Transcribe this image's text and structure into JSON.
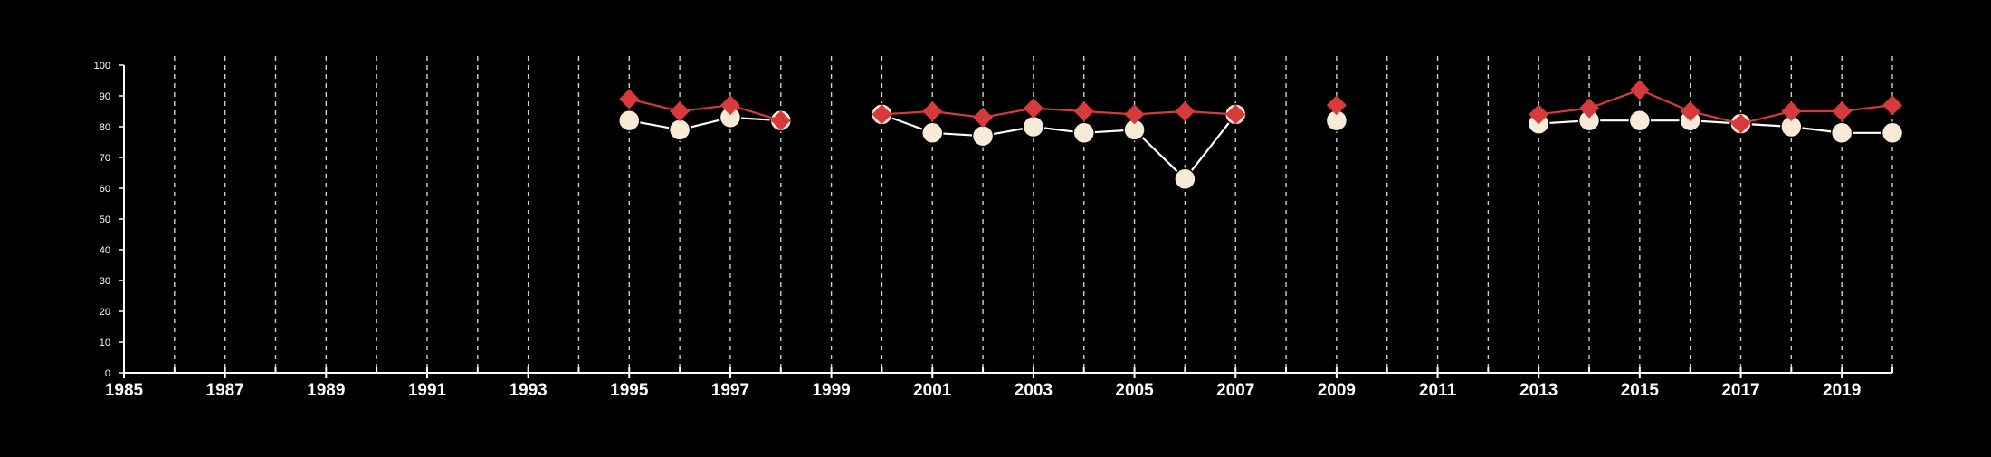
{
  "chart_data": {
    "type": "line",
    "title": "",
    "xlabel": "",
    "ylabel": "",
    "xlim": [
      1985,
      2020
    ],
    "ylim": [
      0,
      100
    ],
    "x_ticks": [
      1985,
      1987,
      1989,
      1991,
      1993,
      1995,
      1997,
      1999,
      2001,
      2003,
      2005,
      2007,
      2009,
      2011,
      2013,
      2015,
      2017,
      2019
    ],
    "x_minor_ticks": [
      1986,
      1987,
      1988,
      1989,
      1990,
      1991,
      1992,
      1993,
      1994,
      1995,
      1996,
      1997,
      1998,
      1999,
      2000,
      2001,
      2002,
      2003,
      2004,
      2005,
      2006,
      2007,
      2008,
      2009,
      2010,
      2011,
      2012,
      2013,
      2014,
      2015,
      2016,
      2017,
      2018,
      2019,
      2020
    ],
    "y_ticks": [
      0,
      10,
      20,
      30,
      40,
      50,
      60,
      70,
      80,
      90,
      100
    ],
    "grid": "vertical dashed lines at each year",
    "legend": "none",
    "background": "#000000",
    "axis_color": "#ffffff",
    "grid_color": "#cfcfcf",
    "series": [
      {
        "marker": "circle",
        "color": "#f7ead7",
        "line_color": "#ffffff",
        "points": [
          [
            1995,
            82
          ],
          [
            1996,
            79
          ],
          [
            1997,
            83
          ],
          [
            1998,
            82
          ],
          [
            1999,
            null
          ],
          [
            2000,
            84
          ],
          [
            2001,
            78
          ],
          [
            2002,
            77
          ],
          [
            2003,
            80
          ],
          [
            2004,
            78
          ],
          [
            2005,
            79
          ],
          [
            2006,
            63
          ],
          [
            2007,
            84
          ],
          [
            2008,
            null
          ],
          [
            2009,
            82
          ],
          [
            2010,
            null
          ],
          [
            2013,
            81
          ],
          [
            2014,
            82
          ],
          [
            2015,
            82
          ],
          [
            2016,
            82
          ],
          [
            2017,
            81
          ],
          [
            2018,
            80
          ],
          [
            2019,
            78
          ],
          [
            2020,
            78
          ]
        ]
      },
      {
        "marker": "diamond",
        "color": "#d63a3a",
        "line_color": "#d63a3a",
        "points": [
          [
            1995,
            89
          ],
          [
            1996,
            85
          ],
          [
            1997,
            87
          ],
          [
            1998,
            82
          ],
          [
            1999,
            null
          ],
          [
            2000,
            84
          ],
          [
            2001,
            85
          ],
          [
            2002,
            83
          ],
          [
            2003,
            86
          ],
          [
            2004,
            85
          ],
          [
            2005,
            84
          ],
          [
            2006,
            85
          ],
          [
            2007,
            84
          ],
          [
            2008,
            null
          ],
          [
            2009,
            87
          ],
          [
            2010,
            null
          ],
          [
            2013,
            84
          ],
          [
            2014,
            86
          ],
          [
            2015,
            92
          ],
          [
            2016,
            85
          ],
          [
            2017,
            81
          ],
          [
            2018,
            85
          ],
          [
            2019,
            85
          ],
          [
            2020,
            87
          ]
        ]
      }
    ]
  }
}
